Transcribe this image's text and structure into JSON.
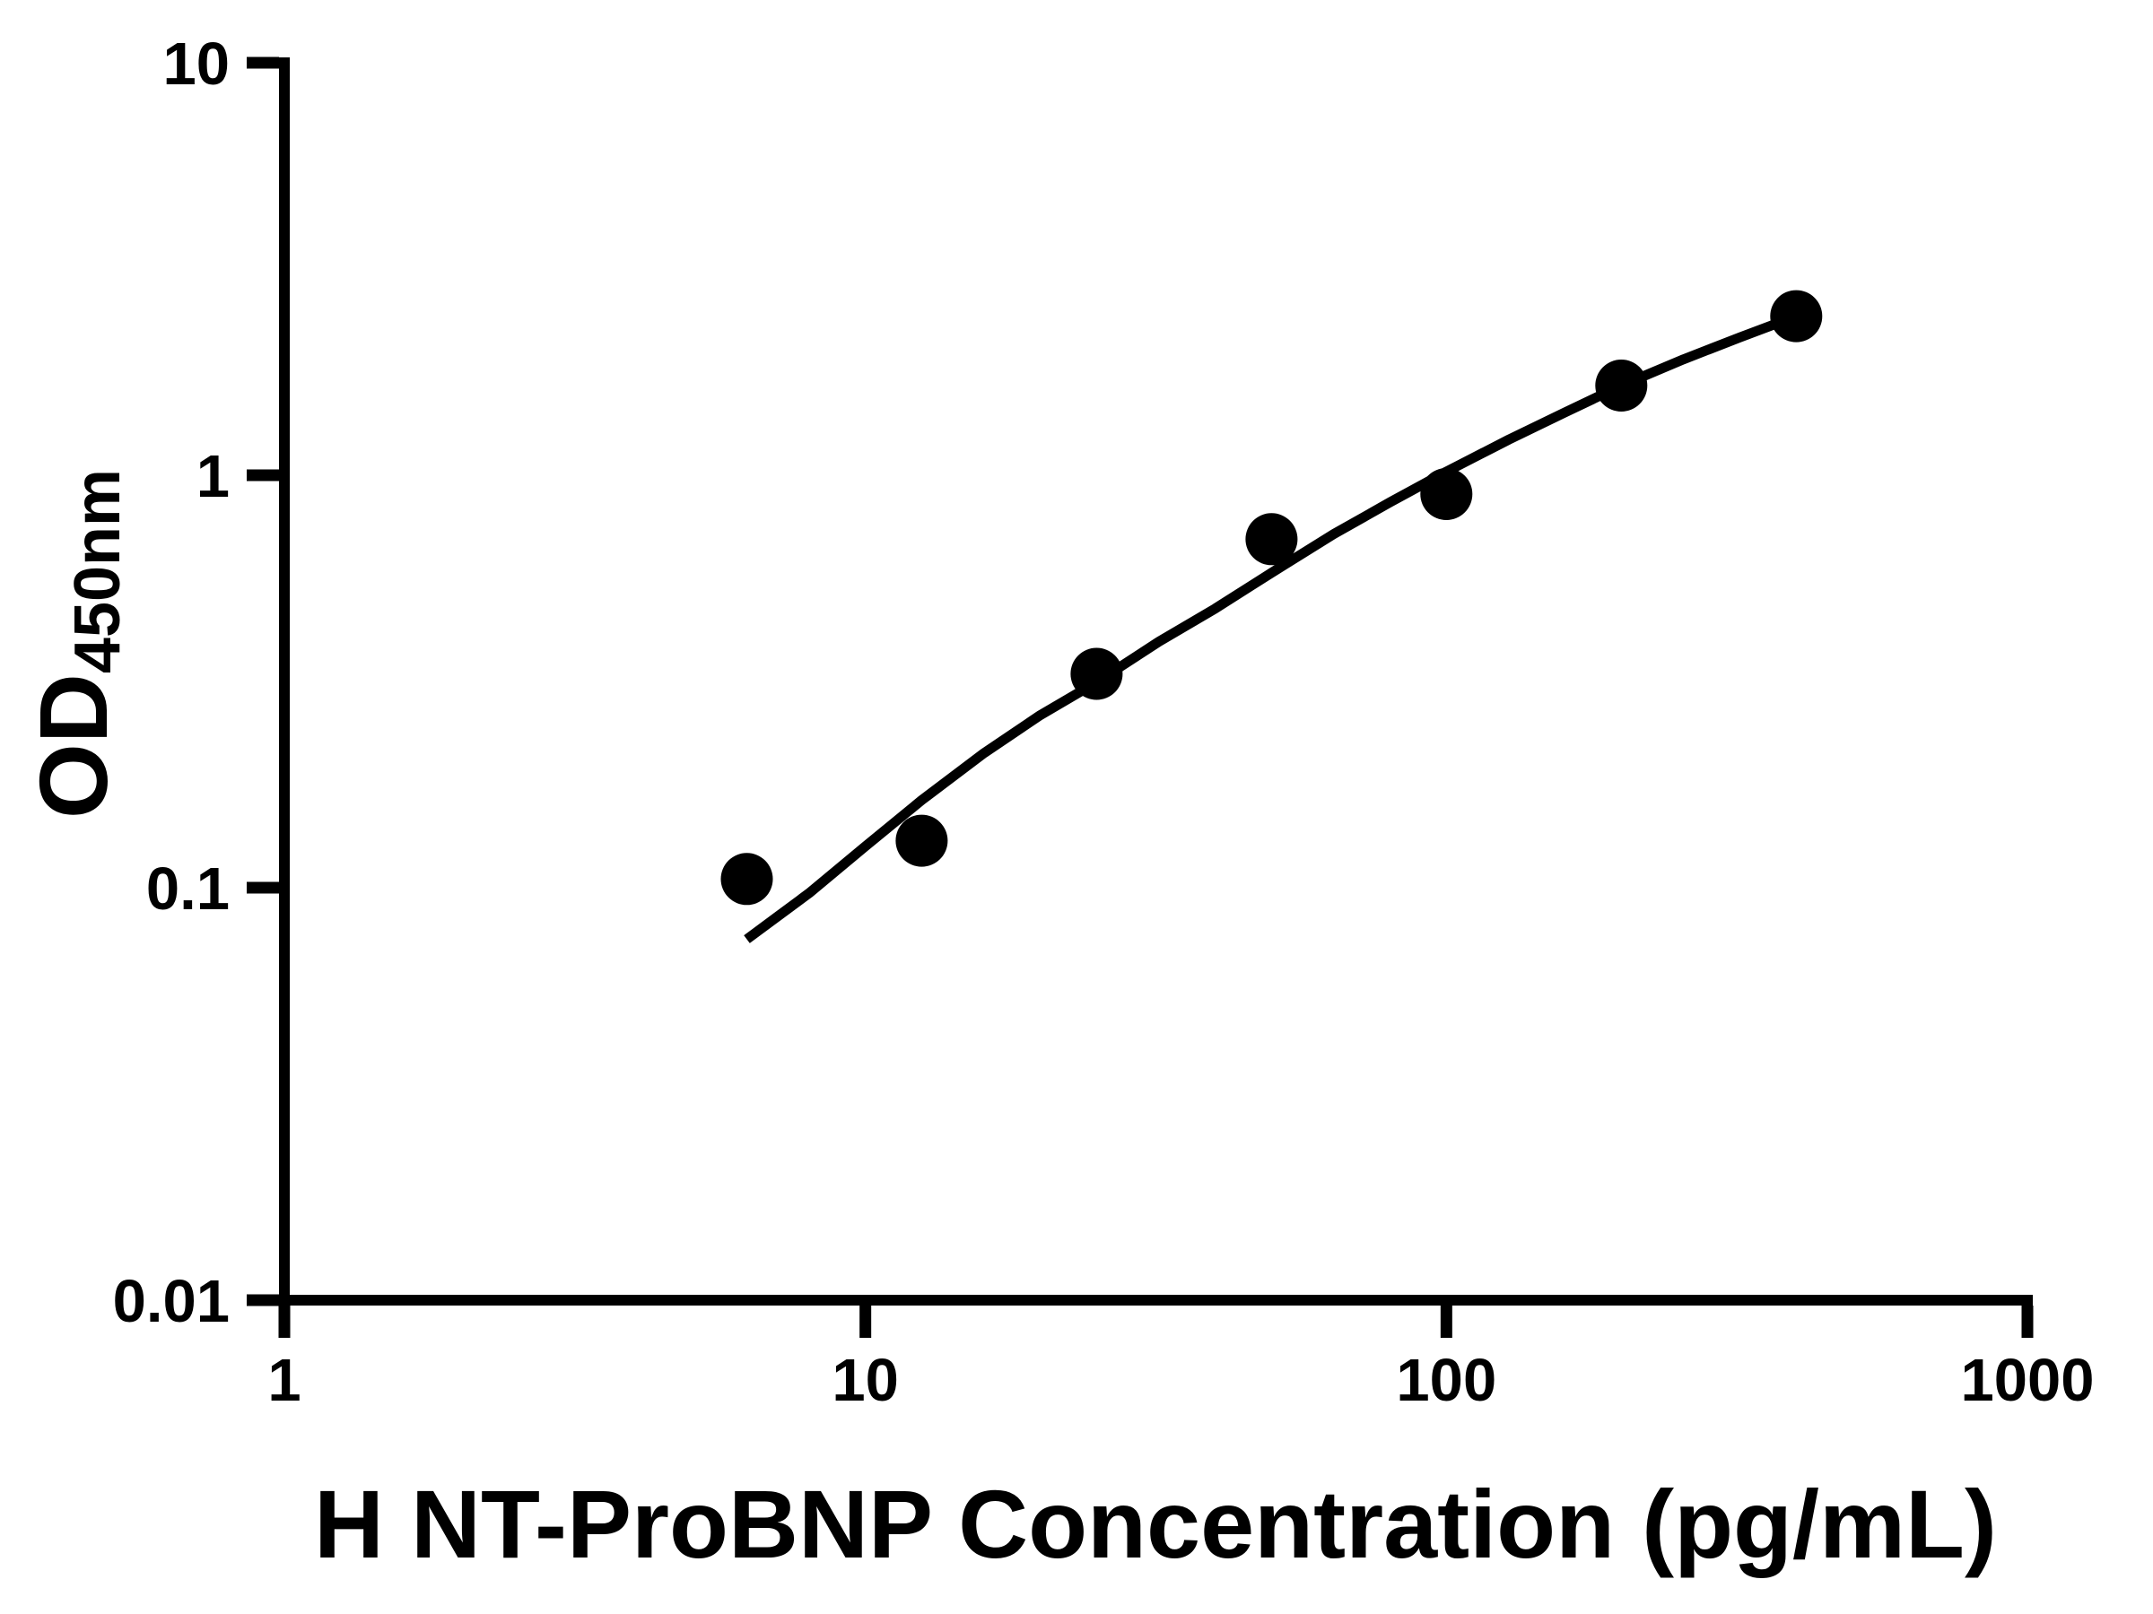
{
  "page": {
    "background_color": "#ffffff",
    "foreground_color": "#000000"
  },
  "chart_data": {
    "type": "scatter",
    "title": "",
    "xlabel": "H NT-ProBNP Concentration (pg/mL)",
    "ylabel_main": "OD",
    "ylabel_sub": "450nm",
    "x_scale": "log",
    "y_scale": "log",
    "xlim": [
      1,
      1000
    ],
    "ylim": [
      0.01,
      10
    ],
    "grid": false,
    "legend": false,
    "marker_style": "filled-circle",
    "marker_color": "#000000",
    "line_color": "#000000",
    "x_ticks": [
      {
        "value": 1,
        "label": "1"
      },
      {
        "value": 10,
        "label": "10"
      },
      {
        "value": 100,
        "label": "100"
      },
      {
        "value": 1000,
        "label": "1000"
      }
    ],
    "y_ticks": [
      {
        "value": 0.01,
        "label": "0.01"
      },
      {
        "value": 0.1,
        "label": "0.1"
      },
      {
        "value": 1,
        "label": "1"
      },
      {
        "value": 10,
        "label": "10"
      }
    ],
    "points": [
      {
        "x": 6.25,
        "y": 0.105
      },
      {
        "x": 12.5,
        "y": 0.13
      },
      {
        "x": 25,
        "y": 0.33
      },
      {
        "x": 50,
        "y": 0.7
      },
      {
        "x": 100,
        "y": 0.9
      },
      {
        "x": 200,
        "y": 1.65
      },
      {
        "x": 400,
        "y": 2.43
      }
    ],
    "fit_curve": [
      [
        6.25,
        0.075
      ],
      [
        8,
        0.097
      ],
      [
        10,
        0.126
      ],
      [
        12.5,
        0.163
      ],
      [
        16,
        0.212
      ],
      [
        20,
        0.262
      ],
      [
        25,
        0.315
      ],
      [
        32,
        0.395
      ],
      [
        40,
        0.475
      ],
      [
        50,
        0.58
      ],
      [
        64,
        0.72
      ],
      [
        80,
        0.86
      ],
      [
        100,
        1.02
      ],
      [
        128,
        1.22
      ],
      [
        160,
        1.42
      ],
      [
        200,
        1.65
      ],
      [
        256,
        1.91
      ],
      [
        320,
        2.16
      ],
      [
        400,
        2.43
      ]
    ]
  }
}
